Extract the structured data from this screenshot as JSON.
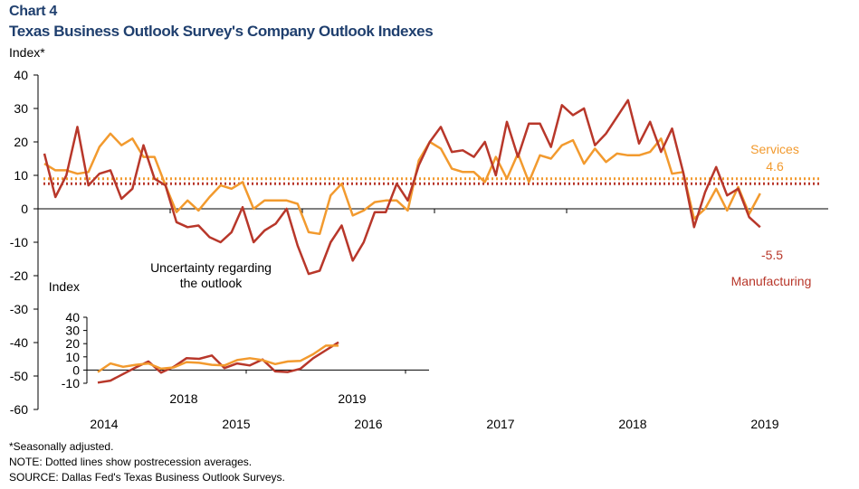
{
  "header": {
    "label": "Chart 4",
    "title": "Texas Business Outlook Survey's Company Outlook Indexes"
  },
  "y_axis_label": "Index*",
  "notes": {
    "seasonal": "*Seasonally adjusted.",
    "note": "NOTE: Dotted lines show postrecession averages.",
    "source": "SOURCE: Dallas Fed's Texas Business Outlook Surveys."
  },
  "colors": {
    "manufacturing": "#b8372a",
    "services": "#f29a2e",
    "axis": "#000000"
  },
  "chart_data": [
    {
      "type": "line",
      "title": "Texas Business Outlook Survey's Company Outlook Indexes",
      "ylabel": "Index*",
      "ylim": [
        -60,
        40
      ],
      "yticks": [
        -60,
        -50,
        -40,
        -30,
        -20,
        -10,
        0,
        10,
        20,
        30,
        40
      ],
      "x_start": "2014-01",
      "x_tick_labels": [
        "2014",
        "2015",
        "2016",
        "2017",
        "2018",
        "2019"
      ],
      "grid": false,
      "series": [
        {
          "name": "Manufacturing",
          "last_value_label": "-5.5",
          "postrecession_average": 7.5,
          "values": [
            16.5,
            3.5,
            10.0,
            24.5,
            7.0,
            10.5,
            11.5,
            3.0,
            6.0,
            19.0,
            9.0,
            7.0,
            -4.0,
            -5.5,
            -5.0,
            -8.5,
            -10.0,
            -7.0,
            0.5,
            -10.0,
            -6.5,
            -4.5,
            0.0,
            -11.0,
            -19.5,
            -18.5,
            -10.0,
            -5.0,
            -15.5,
            -10.0,
            -1.0,
            -1.0,
            7.5,
            2.5,
            13.0,
            20.0,
            24.5,
            17.0,
            17.5,
            15.5,
            20.0,
            10.0,
            26.0,
            15.5,
            25.5,
            25.5,
            18.5,
            31.0,
            28.0,
            30.0,
            19.0,
            22.5,
            27.5,
            32.5,
            19.5,
            26.0,
            17.0,
            24.0,
            11.0,
            -5.5,
            5.0,
            12.5,
            4.0,
            6.0,
            -2.5,
            -5.5
          ]
        },
        {
          "name": "Services",
          "last_value_label": "4.6",
          "postrecession_average": 9.0,
          "values": [
            13.5,
            11.5,
            11.5,
            10.5,
            11.0,
            18.5,
            22.5,
            19.0,
            21.0,
            15.5,
            15.5,
            7.0,
            -1.0,
            2.5,
            -0.5,
            3.5,
            7.0,
            6.0,
            8.0,
            0.0,
            2.5,
            2.5,
            2.5,
            1.5,
            -7.0,
            -7.5,
            4.0,
            7.5,
            -2.0,
            -0.5,
            2.0,
            2.5,
            2.5,
            -0.5,
            14.5,
            20.0,
            18.0,
            12.0,
            11.0,
            11.0,
            8.0,
            15.5,
            9.0,
            16.5,
            8.0,
            16.0,
            15.0,
            19.0,
            20.5,
            13.5,
            18.0,
            14.0,
            16.5,
            16.0,
            16.0,
            17.0,
            21.0,
            10.5,
            11.0,
            -3.0,
            0.0,
            6.0,
            -0.5,
            6.5,
            -1.5,
            4.6
          ]
        }
      ],
      "annotations": [
        {
          "text_line1": "Uncertainty regarding",
          "text_line2": "the outlook"
        },
        {
          "series_label": "Services",
          "value": "4.6"
        },
        {
          "series_label": "Manufacturing",
          "value": "-5.5"
        }
      ]
    },
    {
      "type": "line",
      "title": "Uncertainty regarding the outlook",
      "ylabel": "Index",
      "ylim": [
        -10,
        40
      ],
      "yticks": [
        -10,
        0,
        10,
        20,
        30,
        40
      ],
      "x_start": "2018-01",
      "x_tick_labels": [
        "2018",
        "2019"
      ],
      "series": [
        {
          "name": "Manufacturing",
          "values": [
            -9.5,
            -8.0,
            -3.0,
            2.0,
            6.5,
            -2.0,
            2.5,
            9.0,
            8.5,
            11.0,
            1.5,
            5.0,
            3.5,
            8.0,
            -1.0,
            -1.5,
            1.0,
            9.0,
            15.0,
            21.0
          ]
        },
        {
          "name": "Services",
          "values": [
            -1.5,
            5.0,
            2.5,
            4.0,
            5.0,
            1.0,
            2.0,
            6.0,
            5.5,
            4.0,
            3.5,
            7.5,
            9.0,
            7.5,
            4.5,
            6.5,
            7.0,
            12.0,
            18.5,
            18.5
          ]
        }
      ]
    }
  ]
}
